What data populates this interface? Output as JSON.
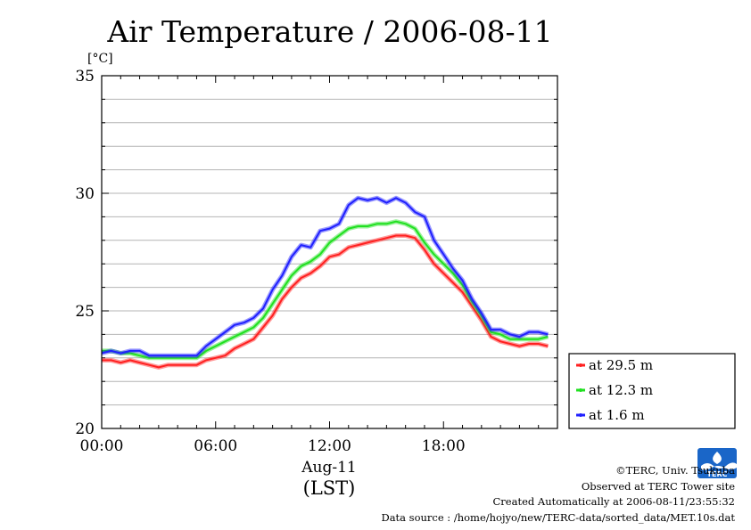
{
  "chart_data": {
    "type": "line",
    "title": "Air Temperature / 2006-08-11",
    "y_unit": "[°C]",
    "ylim": [
      20,
      35
    ],
    "yticks": [
      20,
      25,
      30,
      35
    ],
    "xlim_hours": [
      0,
      24
    ],
    "xticks": [
      {
        "hour": 0,
        "label": "00:00"
      },
      {
        "hour": 6,
        "label": "06:00"
      },
      {
        "hour": 12,
        "label": "12:00"
      },
      {
        "hour": 18,
        "label": "18:00"
      }
    ],
    "xlabel_date": "Aug-11",
    "xlabel_tz": "(LST)",
    "grid": "horizontal",
    "legend_position": "right",
    "series": [
      {
        "name": "at 29.5 m",
        "color": "#ff2020",
        "x": [
          0,
          0.5,
          1,
          1.5,
          2,
          2.5,
          3,
          3.5,
          4,
          4.5,
          5,
          5.5,
          6,
          6.5,
          7,
          7.5,
          8,
          8.5,
          9,
          9.5,
          10,
          10.5,
          11,
          11.5,
          12,
          12.5,
          13,
          13.5,
          14,
          14.5,
          15,
          15.5,
          16,
          16.5,
          17,
          17.5,
          18,
          18.5,
          19,
          19.5,
          20,
          20.5,
          21,
          21.5,
          22,
          22.5,
          23,
          23.5
        ],
        "values": [
          22.9,
          22.9,
          22.8,
          22.9,
          22.8,
          22.7,
          22.6,
          22.7,
          22.7,
          22.7,
          22.7,
          22.9,
          23.0,
          23.1,
          23.4,
          23.6,
          23.8,
          24.3,
          24.8,
          25.5,
          26.0,
          26.4,
          26.6,
          26.9,
          27.3,
          27.4,
          27.7,
          27.8,
          27.9,
          28.0,
          28.1,
          28.2,
          28.2,
          28.1,
          27.6,
          27.0,
          26.6,
          26.2,
          25.8,
          25.2,
          24.6,
          23.9,
          23.7,
          23.6,
          23.5,
          23.6,
          23.6,
          23.5
        ]
      },
      {
        "name": "at 12.3 m",
        "color": "#20e020",
        "x": [
          0,
          0.5,
          1,
          1.5,
          2,
          2.5,
          3,
          3.5,
          4,
          4.5,
          5,
          5.5,
          6,
          6.5,
          7,
          7.5,
          8,
          8.5,
          9,
          9.5,
          10,
          10.5,
          11,
          11.5,
          12,
          12.5,
          13,
          13.5,
          14,
          14.5,
          15,
          15.5,
          16,
          16.5,
          17,
          17.5,
          18,
          18.5,
          19,
          19.5,
          20,
          20.5,
          21,
          21.5,
          22,
          22.5,
          23,
          23.5
        ],
        "values": [
          23.3,
          23.3,
          23.2,
          23.2,
          23.1,
          23.0,
          23.0,
          23.0,
          23.0,
          23.0,
          23.0,
          23.3,
          23.5,
          23.7,
          23.9,
          24.1,
          24.3,
          24.7,
          25.3,
          25.9,
          26.5,
          26.9,
          27.1,
          27.4,
          27.9,
          28.2,
          28.5,
          28.6,
          28.6,
          28.7,
          28.7,
          28.8,
          28.7,
          28.5,
          27.9,
          27.4,
          27.0,
          26.6,
          26.1,
          25.4,
          24.8,
          24.1,
          24.0,
          23.8,
          23.8,
          23.8,
          23.8,
          23.9
        ]
      },
      {
        "name": "at 1.6 m",
        "color": "#2020ff",
        "x": [
          0,
          0.5,
          1,
          1.5,
          2,
          2.5,
          3,
          3.5,
          4,
          4.5,
          5,
          5.5,
          6,
          6.5,
          7,
          7.5,
          8,
          8.5,
          9,
          9.5,
          10,
          10.5,
          11,
          11.5,
          12,
          12.5,
          13,
          13.5,
          14,
          14.5,
          15,
          15.5,
          16,
          16.5,
          17,
          17.5,
          18,
          18.5,
          19,
          19.5,
          20,
          20.5,
          21,
          21.5,
          22,
          22.5,
          23,
          23.5
        ],
        "values": [
          23.2,
          23.3,
          23.2,
          23.3,
          23.3,
          23.1,
          23.1,
          23.1,
          23.1,
          23.1,
          23.1,
          23.5,
          23.8,
          24.1,
          24.4,
          24.5,
          24.7,
          25.1,
          25.9,
          26.5,
          27.3,
          27.8,
          27.7,
          28.4,
          28.5,
          28.7,
          29.5,
          29.8,
          29.7,
          29.8,
          29.6,
          29.8,
          29.6,
          29.2,
          29.0,
          28.0,
          27.4,
          26.8,
          26.3,
          25.5,
          24.9,
          24.2,
          24.2,
          24.0,
          23.9,
          24.1,
          24.1,
          24.0
        ]
      }
    ]
  },
  "credits": {
    "copyright": "©TERC, Univ. Tsukuba",
    "observed": "Observed at TERC Tower site",
    "created": "Created Automatically at 2006-08-11/23:55:32",
    "source": "Data source : /home/hojyo/new/TERC-data/sorted_data/MET.10s.dat"
  },
  "logo": {
    "text": "TERC",
    "color": "#1a66c8",
    "icon": "terc-logo-icon"
  }
}
